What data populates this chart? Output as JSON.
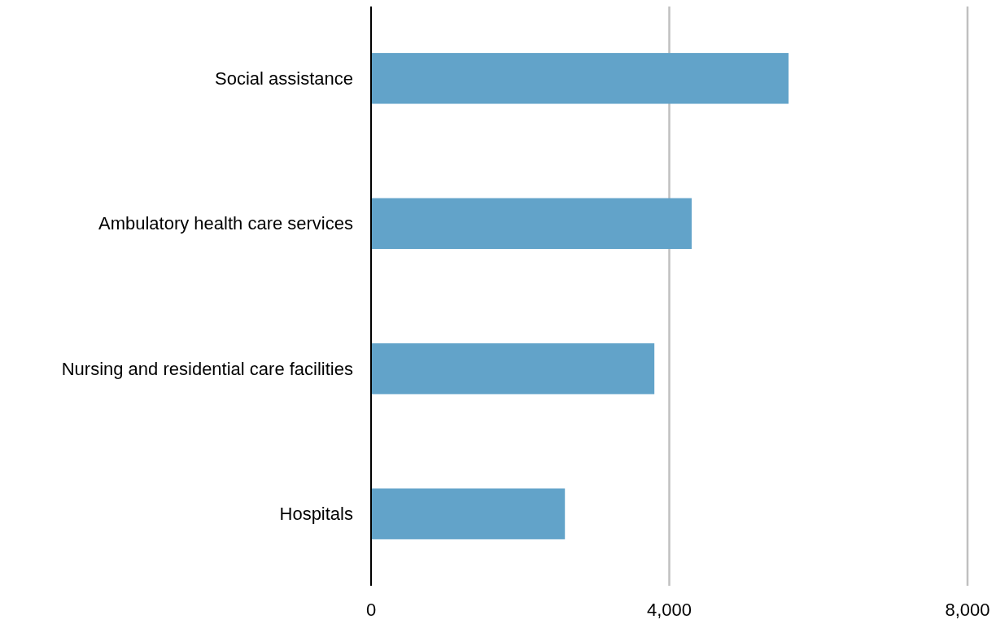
{
  "chart_data": {
    "type": "bar",
    "orientation": "horizontal",
    "categories": [
      "Social assistance",
      "Ambulatory health care services",
      "Nursing and residential care facilities",
      "Hospitals"
    ],
    "values": [
      5600,
      4300,
      3800,
      2600
    ],
    "color": "#62a3c9",
    "xlim": [
      0,
      8000
    ],
    "xticks": [
      {
        "value": 0,
        "label": "0"
      },
      {
        "value": 4000,
        "label": "4,000"
      },
      {
        "value": 8000,
        "label": "8,000"
      }
    ],
    "grid": "x"
  }
}
